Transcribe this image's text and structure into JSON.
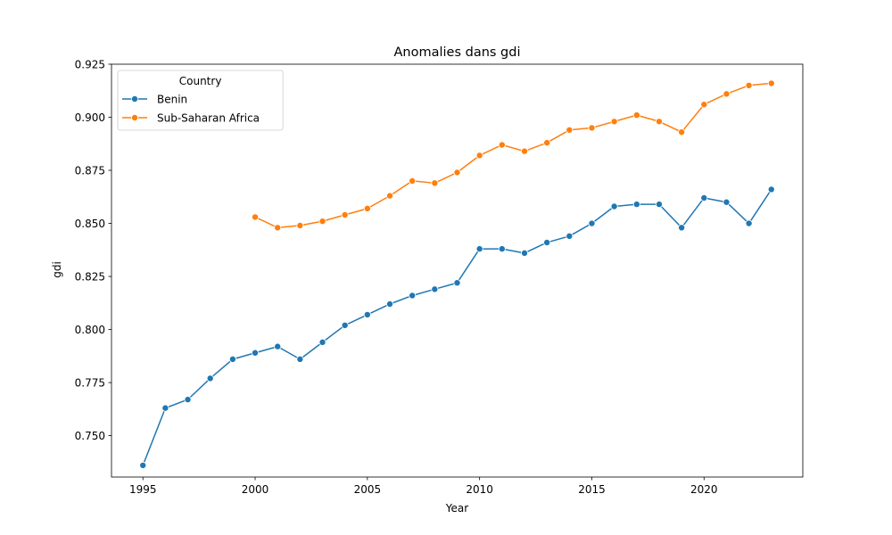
{
  "chart_data": {
    "type": "line",
    "title": "Anomalies dans gdi",
    "xlabel": "Year",
    "ylabel": "gdi",
    "xlim": [
      1993.6,
      2024.4
    ],
    "ylim": [
      0.7305,
      0.925
    ],
    "x_ticks": [
      1995,
      2000,
      2005,
      2010,
      2015,
      2020
    ],
    "y_ticks": [
      0.75,
      0.775,
      0.8,
      0.825,
      0.85,
      0.875,
      0.9,
      0.925
    ],
    "y_tick_labels": [
      "0.750",
      "0.775",
      "0.800",
      "0.825",
      "0.850",
      "0.875",
      "0.900",
      "0.925"
    ],
    "grid": false,
    "legend": {
      "title": "Country",
      "placement": "top-left"
    },
    "series": [
      {
        "name": "Benin",
        "color": "#1f77b4",
        "x": [
          1995,
          1996,
          1997,
          1998,
          1999,
          2000,
          2001,
          2002,
          2003,
          2004,
          2005,
          2006,
          2007,
          2008,
          2009,
          2010,
          2011,
          2012,
          2013,
          2014,
          2015,
          2016,
          2017,
          2018,
          2019,
          2020,
          2021,
          2022,
          2023
        ],
        "values": [
          0.736,
          0.763,
          0.767,
          0.777,
          0.786,
          0.789,
          0.792,
          0.786,
          0.794,
          0.802,
          0.807,
          0.812,
          0.816,
          0.819,
          0.822,
          0.838,
          0.838,
          0.836,
          0.841,
          0.844,
          0.85,
          0.858,
          0.859,
          0.859,
          0.848,
          0.862,
          0.86,
          0.85,
          0.866
        ]
      },
      {
        "name": "Sub-Saharan Africa",
        "color": "#ff7f0e",
        "x": [
          2000,
          2001,
          2002,
          2003,
          2004,
          2005,
          2006,
          2007,
          2008,
          2009,
          2010,
          2011,
          2012,
          2013,
          2014,
          2015,
          2016,
          2017,
          2018,
          2019,
          2020,
          2021,
          2022,
          2023
        ],
        "values": [
          0.853,
          0.848,
          0.849,
          0.851,
          0.854,
          0.857,
          0.863,
          0.87,
          0.869,
          0.874,
          0.882,
          0.887,
          0.884,
          0.888,
          0.894,
          0.895,
          0.898,
          0.901,
          0.898,
          0.893,
          0.906,
          0.911,
          0.915,
          0.916
        ]
      }
    ]
  }
}
